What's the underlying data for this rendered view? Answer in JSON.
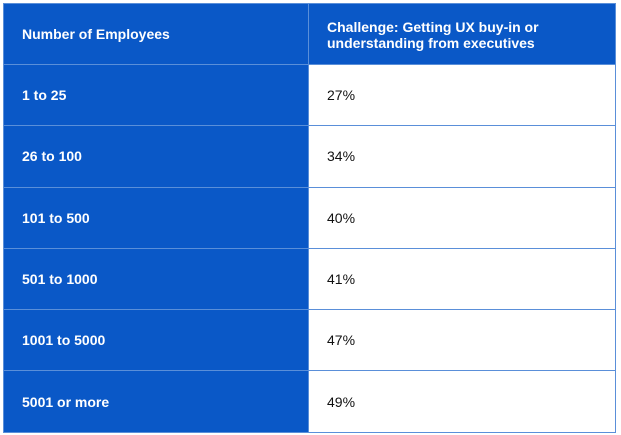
{
  "chart_data": {
    "type": "table",
    "columns": [
      "Number of Employees",
      "Challenge: Getting UX buy-in or understanding from executives"
    ],
    "rows": [
      {
        "label": "1 to 25",
        "value": "27%"
      },
      {
        "label": "26 to 100",
        "value": "34%"
      },
      {
        "label": "101 to 500",
        "value": "40%"
      },
      {
        "label": "501 to 1000",
        "value": "41%"
      },
      {
        "label": "1001 to 5000",
        "value": "47%"
      },
      {
        "label": "5001 or more",
        "value": "49%"
      }
    ]
  },
  "colors": {
    "header_blue": "#0a58c7",
    "grid_line": "#5a8fd9",
    "value_text": "#111111"
  }
}
